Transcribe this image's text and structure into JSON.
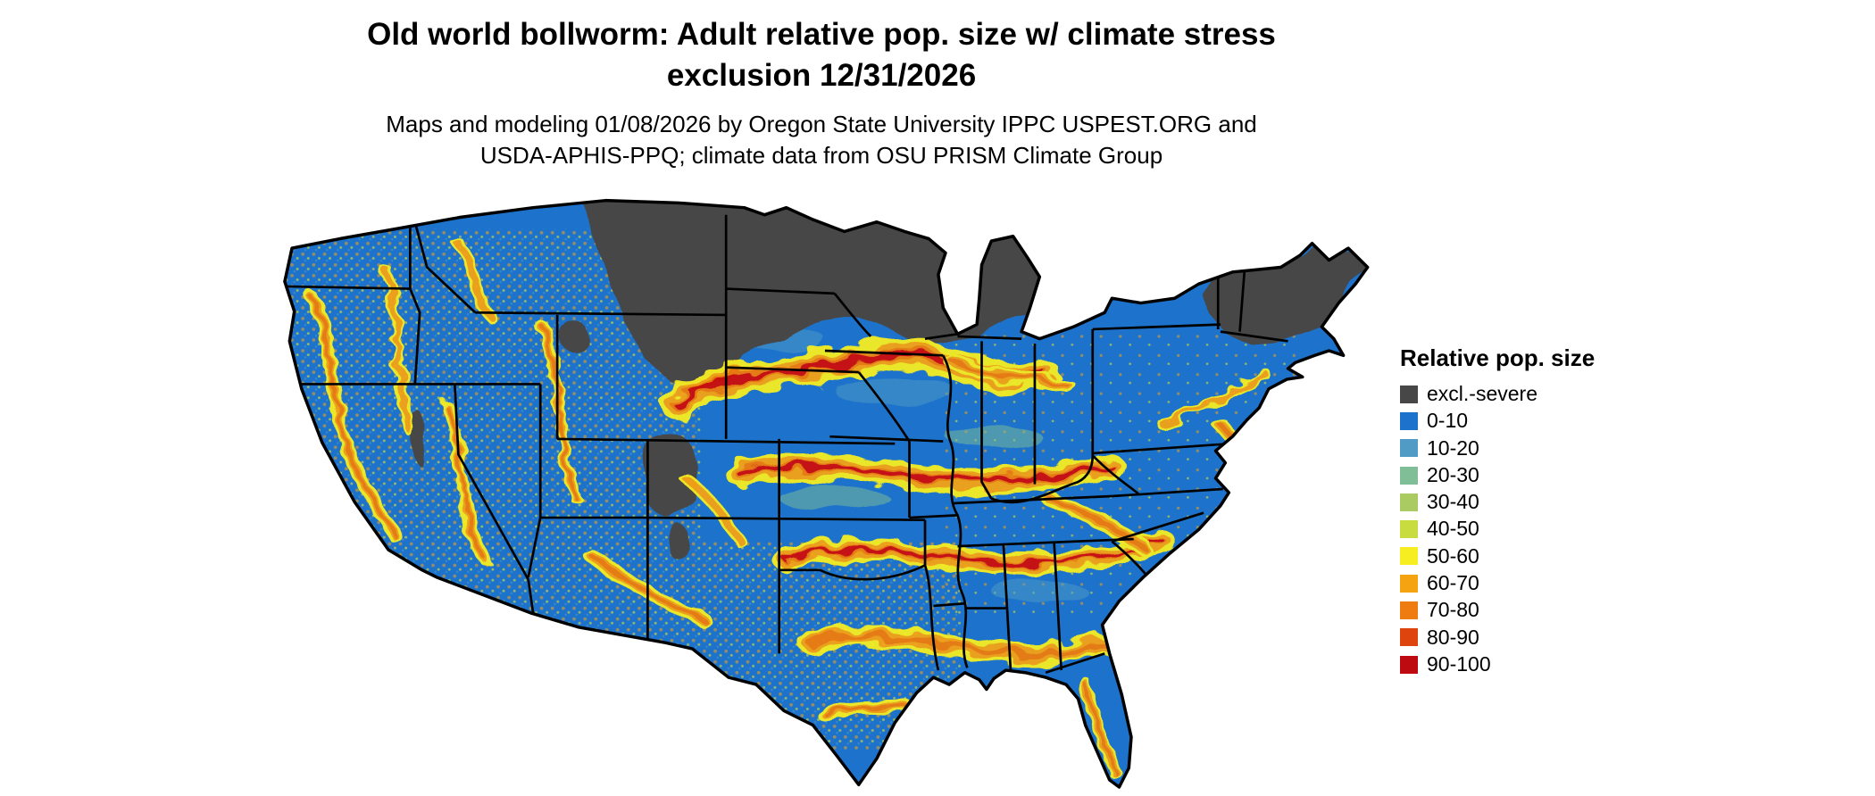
{
  "header": {
    "title_line1": "Old world bollworm: Adult relative pop. size w/ climate stress",
    "title_line2": "exclusion 12/31/2026",
    "subtitle_line1": "Maps and modeling 01/08/2026 by Oregon State University IPPC USPEST.ORG and",
    "subtitle_line2": "USDA-APHIS-PPQ; climate data from OSU PRISM Climate Group"
  },
  "legend": {
    "title": "Relative pop. size",
    "items": [
      {
        "label": "excl.-severe",
        "color": "#474747"
      },
      {
        "label": "0-10",
        "color": "#1d73cb"
      },
      {
        "label": "10-20",
        "color": "#4f9bc5"
      },
      {
        "label": "20-30",
        "color": "#7fbe96"
      },
      {
        "label": "30-40",
        "color": "#a9cb62"
      },
      {
        "label": "40-50",
        "color": "#c8dc3f"
      },
      {
        "label": "50-60",
        "color": "#f6ee20"
      },
      {
        "label": "60-70",
        "color": "#f6a312"
      },
      {
        "label": "70-80",
        "color": "#ef7c11"
      },
      {
        "label": "80-90",
        "color": "#dd440e"
      },
      {
        "label": "90-100",
        "color": "#bd0a10"
      }
    ]
  },
  "map": {
    "colors": {
      "base": "#1d73cb",
      "excluded": "#474747",
      "teal": "#4f9bc5",
      "green": "#7fbe96",
      "band_yellow": "#f6ee20",
      "band_orange": "#f6a312",
      "band_deep": "#ef7c11",
      "band_red": "#cd100e",
      "border": "#000000"
    }
  }
}
